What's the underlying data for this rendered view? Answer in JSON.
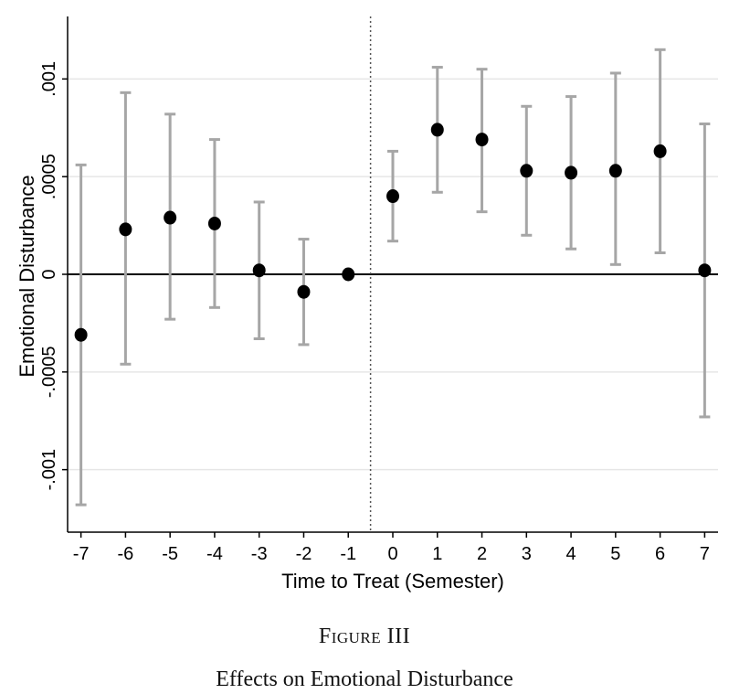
{
  "figure": {
    "label": "Figure III",
    "title": "Effects on Emotional Disturbance"
  },
  "chart_data": {
    "type": "scatter",
    "xlabel": "Time to Treat (Semester)",
    "ylabel": "Emotional Disturbance",
    "xlim": [
      -7.3,
      7.3
    ],
    "ylim": [
      -0.00132,
      0.00132
    ],
    "x_ticks": [
      {
        "value": -7,
        "label": "-7"
      },
      {
        "value": -6,
        "label": "-6"
      },
      {
        "value": -5,
        "label": "-5"
      },
      {
        "value": -4,
        "label": "-4"
      },
      {
        "value": -3,
        "label": "-3"
      },
      {
        "value": -2,
        "label": "-2"
      },
      {
        "value": -1,
        "label": "-1"
      },
      {
        "value": 0,
        "label": "0"
      },
      {
        "value": 1,
        "label": "1"
      },
      {
        "value": 2,
        "label": "2"
      },
      {
        "value": 3,
        "label": "3"
      },
      {
        "value": 4,
        "label": "4"
      },
      {
        "value": 5,
        "label": "5"
      },
      {
        "value": 6,
        "label": "6"
      },
      {
        "value": 7,
        "label": "7"
      }
    ],
    "y_ticks": [
      {
        "value": -0.001,
        "label": "-.001"
      },
      {
        "value": -0.0005,
        "label": "-.0005"
      },
      {
        "value": 0,
        "label": "0"
      },
      {
        "value": 0.0005,
        "label": ".0005"
      },
      {
        "value": 0.001,
        "label": ".001"
      }
    ],
    "grid": {
      "horizontal": true,
      "vertical": false
    },
    "reference_lines": {
      "horizontal_at": 0,
      "vertical_dotted_at": -0.5
    },
    "points": [
      {
        "x": -7,
        "y": -0.00031,
        "ci_low": -0.00118,
        "ci_high": 0.00056
      },
      {
        "x": -6,
        "y": 0.00023,
        "ci_low": -0.00046,
        "ci_high": 0.00093
      },
      {
        "x": -5,
        "y": 0.00029,
        "ci_low": -0.00023,
        "ci_high": 0.00082
      },
      {
        "x": -4,
        "y": 0.00026,
        "ci_low": -0.00017,
        "ci_high": 0.00069
      },
      {
        "x": -3,
        "y": 2e-05,
        "ci_low": -0.00033,
        "ci_high": 0.00037
      },
      {
        "x": -2,
        "y": -9e-05,
        "ci_low": -0.00036,
        "ci_high": 0.00018
      },
      {
        "x": -1,
        "y": 0.0,
        "ci_low": 0.0,
        "ci_high": 0.0
      },
      {
        "x": 0,
        "y": 0.0004,
        "ci_low": 0.00017,
        "ci_high": 0.00063
      },
      {
        "x": 1,
        "y": 0.00074,
        "ci_low": 0.00042,
        "ci_high": 0.00106
      },
      {
        "x": 2,
        "y": 0.00069,
        "ci_low": 0.00032,
        "ci_high": 0.00105
      },
      {
        "x": 3,
        "y": 0.00053,
        "ci_low": 0.0002,
        "ci_high": 0.00086
      },
      {
        "x": 4,
        "y": 0.00052,
        "ci_low": 0.00013,
        "ci_high": 0.00091
      },
      {
        "x": 5,
        "y": 0.00053,
        "ci_low": 5e-05,
        "ci_high": 0.00103
      },
      {
        "x": 6,
        "y": 0.00063,
        "ci_low": 0.00011,
        "ci_high": 0.00115
      },
      {
        "x": 7,
        "y": 2e-05,
        "ci_low": -0.00073,
        "ci_high": 0.00077
      }
    ],
    "colors": {
      "point": "#000000",
      "ci": "#a6a6a6",
      "grid": "#e6e6e6",
      "axis": "#000000"
    }
  }
}
